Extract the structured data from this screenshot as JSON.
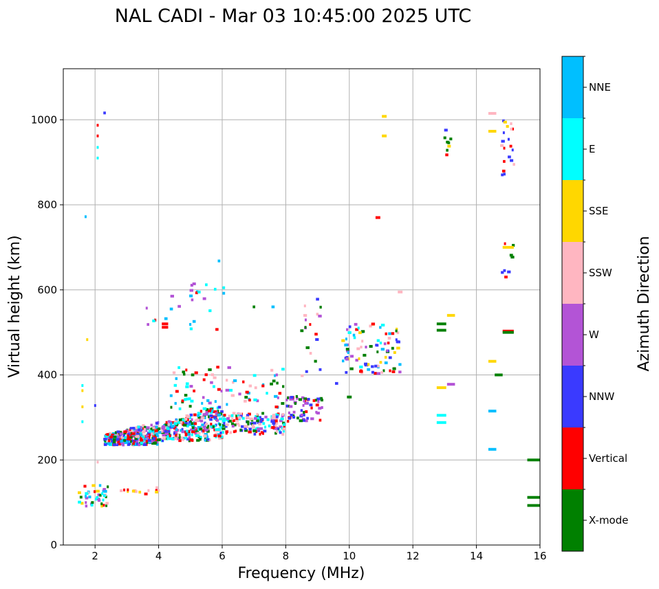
{
  "chart_data": {
    "type": "scatter",
    "title": "NAL CADI - Mar 03 10:45:00 2025 UTC",
    "xlabel": "Frequency (MHz)",
    "ylabel": "Virtual height (km)",
    "xlim": [
      1,
      16
    ],
    "ylim": [
      0,
      1120
    ],
    "xticks": [
      2,
      4,
      6,
      8,
      10,
      12,
      14,
      16
    ],
    "yticks": [
      0,
      200,
      400,
      600,
      800,
      1000
    ],
    "grid": true,
    "colorbar": {
      "label": "Azimuth Direction",
      "categories": [
        {
          "name": "X-mode",
          "color": "#008000"
        },
        {
          "name": "Vertical",
          "color": "#ff0000"
        },
        {
          "name": "NNW",
          "color": "#3a3aff"
        },
        {
          "name": "W",
          "color": "#b354d6"
        },
        {
          "name": "SSW",
          "color": "#ffb6c1"
        },
        {
          "name": "SSE",
          "color": "#ffd700"
        },
        {
          "name": "E",
          "color": "#00ffff"
        },
        {
          "name": "NNE",
          "color": "#00bfff"
        }
      ]
    },
    "clusters": [
      {
        "name": "F-layer-trace-low",
        "x": [
          2.3,
          4.0
        ],
        "y": [
          235,
          290
        ],
        "n": 320,
        "dirs": [
          "Vertical",
          "E",
          "NNE",
          "X-mode",
          "W",
          "SSW",
          "NNW"
        ]
      },
      {
        "name": "F-layer-trace-mid",
        "x": [
          4.0,
          6.0
        ],
        "y": [
          245,
          330
        ],
        "n": 280,
        "dirs": [
          "Vertical",
          "E",
          "NNE",
          "W",
          "NNW",
          "X-mode",
          "SSW"
        ]
      },
      {
        "name": "F-layer-rise",
        "x": [
          6.0,
          8.0
        ],
        "y": [
          260,
          310
        ],
        "n": 150,
        "dirs": [
          "W",
          "X-mode",
          "NNW",
          "SSW",
          "Vertical",
          "E"
        ]
      },
      {
        "name": "F-layer-rise-2",
        "x": [
          8.0,
          9.2
        ],
        "y": [
          290,
          350
        ],
        "n": 60,
        "dirs": [
          "W",
          "NNW",
          "X-mode",
          "Vertical"
        ]
      },
      {
        "name": "F-layer-oblique",
        "x": [
          9.8,
          11.6
        ],
        "y": [
          400,
          520
        ],
        "n": 90,
        "dirs": [
          "E",
          "NNE",
          "X-mode",
          "SSW",
          "NNW",
          "SSE",
          "Vertical",
          "W"
        ]
      },
      {
        "name": "F-scatter-spread",
        "x": [
          4.3,
          8.0
        ],
        "y": [
          320,
          420
        ],
        "n": 80,
        "dirs": [
          "Vertical",
          "E",
          "X-mode",
          "NNE",
          "SSW",
          "W"
        ]
      },
      {
        "name": "F-upper-scatter",
        "x": [
          3.6,
          6.0
        ],
        "y": [
          500,
          620
        ],
        "n": 22,
        "dirs": [
          "Vertical",
          "NNE",
          "E",
          "W"
        ]
      },
      {
        "name": "F-high-9mhz",
        "x": [
          8.5,
          9.2
        ],
        "y": [
          360,
          580
        ],
        "n": 18,
        "dirs": [
          "X-mode",
          "W",
          "NNW",
          "Vertical",
          "SSW"
        ]
      },
      {
        "name": "E-layer",
        "x": [
          1.5,
          2.4
        ],
        "y": [
          90,
          140
        ],
        "n": 40,
        "dirs": [
          "NNE",
          "E",
          "SSE",
          "Vertical",
          "SSW",
          "X-mode",
          "W"
        ]
      },
      {
        "name": "E-layer-2",
        "x": [
          2.8,
          4.0
        ],
        "y": [
          120,
          135
        ],
        "n": 14,
        "dirs": [
          "SSW",
          "SSE",
          "Vertical"
        ]
      },
      {
        "name": "high-15mhz",
        "x": [
          14.8,
          15.2
        ],
        "y": [
          870,
          1010
        ],
        "n": 20,
        "dirs": [
          "SSE",
          "NNW",
          "Vertical",
          "SSW"
        ]
      },
      {
        "name": "high-13mhz",
        "x": [
          13.0,
          13.2
        ],
        "y": [
          910,
          990
        ],
        "n": 8,
        "dirs": [
          "X-mode",
          "NNW",
          "SSE",
          "Vertical"
        ]
      },
      {
        "name": "mid-15mhz",
        "x": [
          14.8,
          15.2
        ],
        "y": [
          620,
          710
        ],
        "n": 8,
        "dirs": [
          "X-mode",
          "NNW",
          "Vertical"
        ]
      }
    ],
    "points": [
      {
        "x": 15.8,
        "y": 200,
        "dir": "X-mode",
        "w": 0.4
      },
      {
        "x": 15.8,
        "y": 112,
        "dir": "X-mode",
        "w": 0.4
      },
      {
        "x": 15.8,
        "y": 93,
        "dir": "X-mode",
        "w": 0.4
      },
      {
        "x": 15.0,
        "y": 503,
        "dir": "Vertical",
        "w": 0.35
      },
      {
        "x": 15.0,
        "y": 500,
        "dir": "X-mode",
        "w": 0.35
      },
      {
        "x": 15.0,
        "y": 700,
        "dir": "SSE",
        "w": 0.35
      },
      {
        "x": 14.5,
        "y": 315,
        "dir": "NNE",
        "w": 0.25
      },
      {
        "x": 14.5,
        "y": 225,
        "dir": "NNE",
        "w": 0.25
      },
      {
        "x": 14.5,
        "y": 432,
        "dir": "SSE",
        "w": 0.25
      },
      {
        "x": 14.5,
        "y": 1015,
        "dir": "SSW",
        "w": 0.25
      },
      {
        "x": 14.5,
        "y": 973,
        "dir": "SSE",
        "w": 0.25
      },
      {
        "x": 14.7,
        "y": 400,
        "dir": "X-mode",
        "w": 0.25
      },
      {
        "x": 13.2,
        "y": 540,
        "dir": "SSE",
        "w": 0.25
      },
      {
        "x": 13.2,
        "y": 378,
        "dir": "W",
        "w": 0.25
      },
      {
        "x": 12.9,
        "y": 520,
        "dir": "X-mode",
        "w": 0.3
      },
      {
        "x": 12.9,
        "y": 505,
        "dir": "X-mode",
        "w": 0.3
      },
      {
        "x": 12.9,
        "y": 370,
        "dir": "SSE",
        "w": 0.3
      },
      {
        "x": 12.9,
        "y": 305,
        "dir": "E",
        "w": 0.3
      },
      {
        "x": 12.9,
        "y": 288,
        "dir": "E",
        "w": 0.3
      },
      {
        "x": 11.1,
        "y": 1008,
        "dir": "SSE",
        "w": 0.15
      },
      {
        "x": 11.1,
        "y": 962,
        "dir": "SSE",
        "w": 0.15
      },
      {
        "x": 10.9,
        "y": 770,
        "dir": "Vertical",
        "w": 0.15
      },
      {
        "x": 11.6,
        "y": 595,
        "dir": "SSW",
        "w": 0.15
      },
      {
        "x": 10.0,
        "y": 348,
        "dir": "X-mode",
        "w": 0.15
      },
      {
        "x": 9.6,
        "y": 380,
        "dir": "NNW",
        "w": 0.1
      },
      {
        "x": 1.7,
        "y": 772,
        "dir": "NNE",
        "w": 0.06
      },
      {
        "x": 1.75,
        "y": 483,
        "dir": "SSE",
        "w": 0.06
      },
      {
        "x": 2.3,
        "y": 1016,
        "dir": "NNW",
        "w": 0.08
      },
      {
        "x": 2.08,
        "y": 987,
        "dir": "Vertical",
        "w": 0.06
      },
      {
        "x": 2.08,
        "y": 962,
        "dir": "Vertical",
        "w": 0.06
      },
      {
        "x": 2.08,
        "y": 935,
        "dir": "E",
        "w": 0.06
      },
      {
        "x": 2.08,
        "y": 910,
        "dir": "E",
        "w": 0.06
      },
      {
        "x": 2.08,
        "y": 195,
        "dir": "SSW",
        "w": 0.06
      },
      {
        "x": 1.6,
        "y": 375,
        "dir": "E",
        "w": 0.06
      },
      {
        "x": 1.6,
        "y": 363,
        "dir": "SSE",
        "w": 0.06
      },
      {
        "x": 1.6,
        "y": 325,
        "dir": "SSE",
        "w": 0.06
      },
      {
        "x": 1.6,
        "y": 290,
        "dir": "E",
        "w": 0.06
      },
      {
        "x": 2.0,
        "y": 328,
        "dir": "NNW",
        "w": 0.06
      },
      {
        "x": 5.9,
        "y": 668,
        "dir": "NNE",
        "w": 0.08
      },
      {
        "x": 5.5,
        "y": 612,
        "dir": "E",
        "w": 0.08
      },
      {
        "x": 6.05,
        "y": 605,
        "dir": "E",
        "w": 0.08
      },
      {
        "x": 6.05,
        "y": 592,
        "dir": "NNE",
        "w": 0.08
      },
      {
        "x": 7.0,
        "y": 560,
        "dir": "X-mode",
        "w": 0.08
      },
      {
        "x": 7.6,
        "y": 560,
        "dir": "NNE",
        "w": 0.1
      },
      {
        "x": 9.0,
        "y": 578,
        "dir": "NNW",
        "w": 0.1
      },
      {
        "x": 4.2,
        "y": 520,
        "dir": "Vertical",
        "w": 0.2
      },
      {
        "x": 4.2,
        "y": 512,
        "dir": "Vertical",
        "w": 0.2
      },
      {
        "x": 4.4,
        "y": 555,
        "dir": "NNE",
        "w": 0.1
      }
    ]
  }
}
